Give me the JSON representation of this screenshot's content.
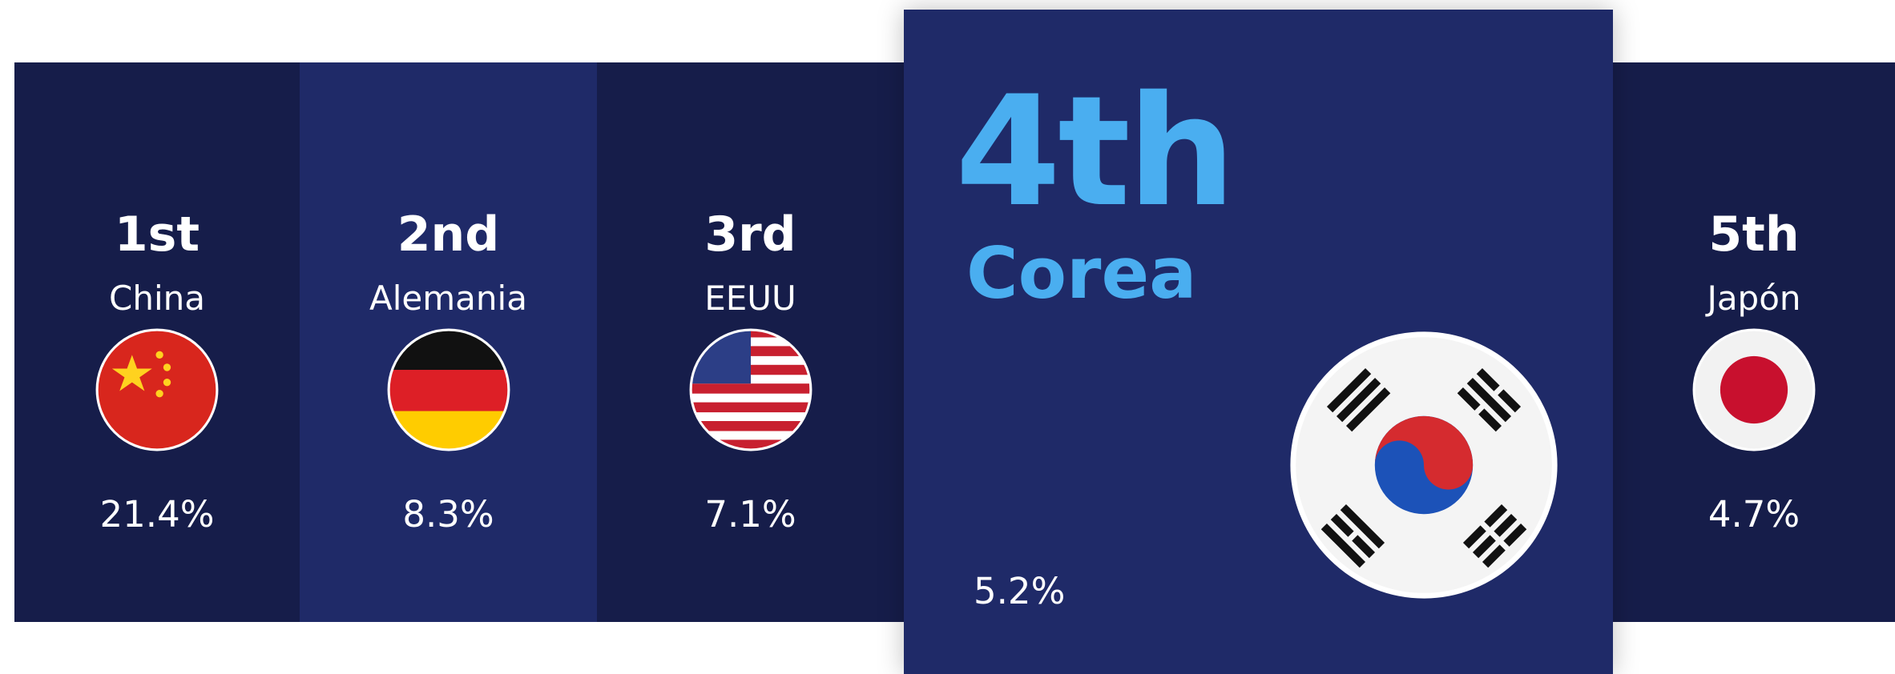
{
  "items": [
    {
      "rank": "1st",
      "country": "China",
      "share": "21.4%"
    },
    {
      "rank": "2nd",
      "country": "Alemania",
      "share": "8.3%"
    },
    {
      "rank": "3rd",
      "country": "EEUU",
      "share": "7.1%"
    },
    {
      "rank": "4th",
      "country": "Corea",
      "share": "5.2%"
    },
    {
      "rank": "5th",
      "country": "Japón",
      "share": "4.7%"
    }
  ]
}
